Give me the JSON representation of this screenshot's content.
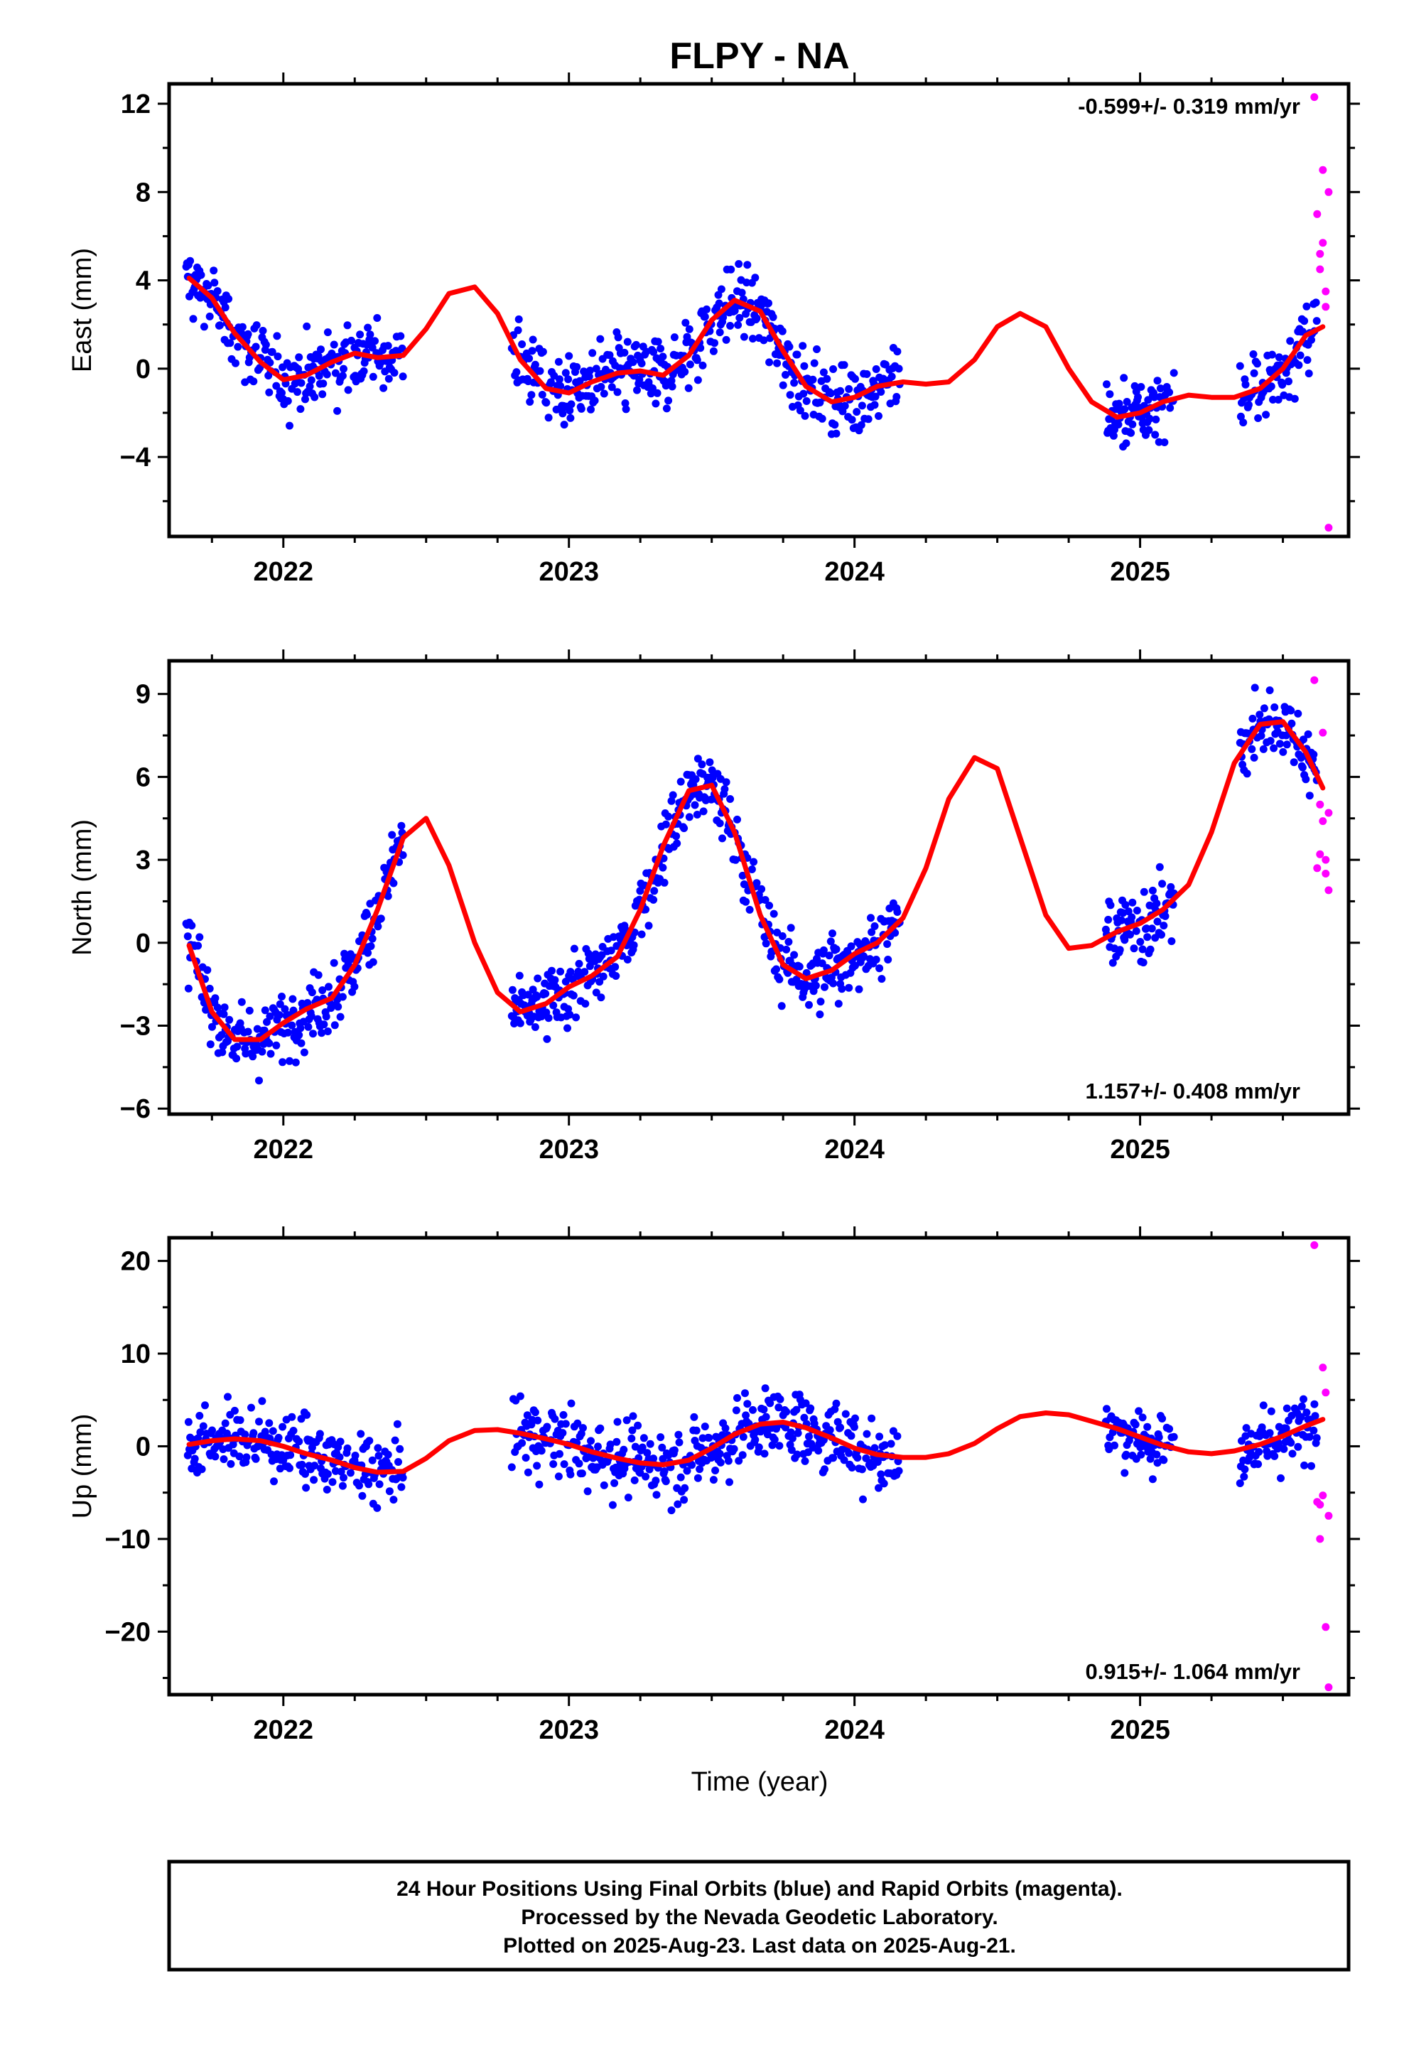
{
  "chart_data": {
    "type": "scatter",
    "title": "FLPY - NA",
    "xlabel": "Time (year)",
    "x_ticks": [
      "2022",
      "2023",
      "2024",
      "2025"
    ],
    "xlim": [
      2021.6,
      2025.73
    ],
    "colors": {
      "final": "#0000ff",
      "rapid": "#ff00ff",
      "model": "#ff0000"
    },
    "grid": false,
    "legend": "none",
    "panels": [
      {
        "name": "east",
        "ylabel": "East (mm)",
        "ylim": [
          -7.6,
          12.9
        ],
        "y_ticks": [
          "12",
          "8",
          "4",
          "0",
          "−4"
        ],
        "y_tick_values": [
          12,
          8,
          4,
          0,
          -4
        ],
        "rate_text": "-0.599+/- 0.319 mm/yr",
        "rate_position": "top-right",
        "model_curve": {
          "x": [
            2021.67,
            2021.75,
            2021.83,
            2021.92,
            2022.0,
            2022.08,
            2022.17,
            2022.25,
            2022.33,
            2022.42,
            2022.5,
            2022.58,
            2022.67,
            2022.75,
            2022.83,
            2022.92,
            2023.0,
            2023.08,
            2023.17,
            2023.25,
            2023.33,
            2023.42,
            2023.5,
            2023.58,
            2023.67,
            2023.75,
            2023.83,
            2023.92,
            2024.0,
            2024.08,
            2024.17,
            2024.25,
            2024.33,
            2024.42,
            2024.5,
            2024.58,
            2024.67,
            2024.75,
            2024.83,
            2024.92,
            2025.0,
            2025.08,
            2025.17,
            2025.25,
            2025.33,
            2025.42,
            2025.5,
            2025.58,
            2025.64
          ],
          "y": [
            4.1,
            3.2,
            1.6,
            0.3,
            -0.5,
            -0.3,
            0.3,
            0.7,
            0.5,
            0.6,
            1.8,
            3.4,
            3.7,
            2.5,
            0.4,
            -0.9,
            -1.1,
            -0.6,
            -0.2,
            -0.1,
            -0.3,
            0.6,
            2.2,
            3.1,
            2.6,
            0.8,
            -0.8,
            -1.5,
            -1.3,
            -0.8,
            -0.6,
            -0.7,
            -0.6,
            0.4,
            1.9,
            2.5,
            1.9,
            0.0,
            -1.5,
            -2.2,
            -2.0,
            -1.5,
            -1.2,
            -1.3,
            -1.3,
            -0.9,
            0.0,
            1.5,
            1.9
          ]
        },
        "final_blocks": [
          [
            2021.66,
            2022.42
          ],
          [
            2022.8,
            2023.75
          ],
          [
            2023.75,
            2024.16
          ],
          [
            2024.88,
            2025.12
          ],
          [
            2025.35,
            2025.62
          ]
        ],
        "rapid_points": {
          "x": [
            2025.61,
            2025.62,
            2025.63,
            2025.63,
            2025.64,
            2025.64,
            2025.65,
            2025.65,
            2025.66,
            2025.66
          ],
          "y": [
            12.3,
            7.0,
            5.2,
            4.5,
            9.0,
            5.7,
            3.5,
            2.8,
            8.0,
            -7.2
          ]
        }
      },
      {
        "name": "north",
        "ylabel": "North (mm)",
        "ylim": [
          -6.2,
          10.2
        ],
        "y_ticks": [
          "9",
          "6",
          "3",
          "0",
          "−3",
          "−6"
        ],
        "y_tick_values": [
          9,
          6,
          3,
          0,
          -3,
          -6
        ],
        "rate_text": "1.157+/- 0.408 mm/yr",
        "rate_position": "bottom-right",
        "model_curve": {
          "x": [
            2021.67,
            2021.75,
            2021.83,
            2021.92,
            2022.0,
            2022.08,
            2022.17,
            2022.25,
            2022.33,
            2022.42,
            2022.5,
            2022.58,
            2022.67,
            2022.75,
            2022.83,
            2022.92,
            2023.0,
            2023.08,
            2023.17,
            2023.25,
            2023.33,
            2023.42,
            2023.5,
            2023.58,
            2023.67,
            2023.75,
            2023.83,
            2023.92,
            2024.0,
            2024.08,
            2024.17,
            2024.25,
            2024.33,
            2024.42,
            2024.5,
            2024.58,
            2024.67,
            2024.75,
            2024.83,
            2024.92,
            2025.0,
            2025.08,
            2025.17,
            2025.25,
            2025.33,
            2025.42,
            2025.5,
            2025.58,
            2025.64
          ],
          "y": [
            -0.1,
            -2.5,
            -3.5,
            -3.5,
            -2.9,
            -2.4,
            -2.0,
            -0.8,
            1.2,
            3.8,
            4.5,
            2.8,
            0.0,
            -1.8,
            -2.5,
            -2.2,
            -1.6,
            -1.2,
            -0.5,
            1.2,
            3.5,
            5.5,
            5.7,
            4.0,
            1.0,
            -0.8,
            -1.3,
            -1.0,
            -0.4,
            0.0,
            0.9,
            2.7,
            5.2,
            6.7,
            6.3,
            3.8,
            1.0,
            -0.2,
            -0.1,
            0.4,
            0.7,
            1.2,
            2.1,
            4.0,
            6.5,
            7.9,
            8.0,
            6.9,
            5.6
          ]
        },
        "final_blocks": [
          [
            2021.66,
            2022.42
          ],
          [
            2022.8,
            2023.75
          ],
          [
            2023.75,
            2024.16
          ],
          [
            2024.88,
            2025.12
          ],
          [
            2025.35,
            2025.62
          ]
        ],
        "rapid_points": {
          "x": [
            2025.61,
            2025.62,
            2025.63,
            2025.63,
            2025.64,
            2025.64,
            2025.65,
            2025.65,
            2025.66,
            2025.66
          ],
          "y": [
            9.5,
            2.7,
            3.2,
            5.0,
            7.6,
            4.4,
            3.0,
            2.5,
            4.7,
            1.9
          ]
        }
      },
      {
        "name": "up",
        "ylabel": "Up (mm)",
        "ylim": [
          -26.8,
          22.5
        ],
        "y_ticks": [
          "20",
          "10",
          "0",
          "−10",
          "−20"
        ],
        "y_tick_values": [
          20,
          10,
          0,
          -10,
          -20
        ],
        "rate_text": "0.915+/- 1.064 mm/yr",
        "rate_position": "bottom-right",
        "model_curve": {
          "x": [
            2021.67,
            2021.75,
            2021.83,
            2021.92,
            2022.0,
            2022.08,
            2022.17,
            2022.25,
            2022.33,
            2022.42,
            2022.5,
            2022.58,
            2022.67,
            2022.75,
            2022.83,
            2022.92,
            2023.0,
            2023.08,
            2023.17,
            2023.25,
            2023.33,
            2023.42,
            2023.5,
            2023.58,
            2023.67,
            2023.75,
            2023.83,
            2023.92,
            2024.0,
            2024.08,
            2024.17,
            2024.25,
            2024.33,
            2024.42,
            2024.5,
            2024.58,
            2024.67,
            2024.75,
            2024.83,
            2024.92,
            2025.0,
            2025.08,
            2025.17,
            2025.25,
            2025.33,
            2025.42,
            2025.5,
            2025.58,
            2025.64
          ],
          "y": [
            0.2,
            0.6,
            0.8,
            0.6,
            0.0,
            -0.8,
            -1.5,
            -2.3,
            -2.8,
            -2.7,
            -1.3,
            0.6,
            1.7,
            1.8,
            1.4,
            0.8,
            0.2,
            -0.6,
            -1.3,
            -1.8,
            -2.0,
            -1.5,
            -0.2,
            1.3,
            2.4,
            2.6,
            2.0,
            0.9,
            -0.2,
            -0.9,
            -1.2,
            -1.2,
            -0.8,
            0.3,
            1.9,
            3.2,
            3.6,
            3.4,
            2.7,
            1.9,
            1.0,
            0.1,
            -0.6,
            -0.8,
            -0.5,
            0.2,
            1.1,
            2.2,
            2.9
          ]
        },
        "final_blocks": [
          [
            2021.66,
            2022.42
          ],
          [
            2022.8,
            2023.75
          ],
          [
            2023.75,
            2024.16
          ],
          [
            2024.88,
            2025.12
          ],
          [
            2025.35,
            2025.62
          ]
        ],
        "rapid_points": {
          "x": [
            2025.61,
            2025.62,
            2025.63,
            2025.63,
            2025.64,
            2025.64,
            2025.65,
            2025.65,
            2025.66,
            2025.66
          ],
          "y": [
            21.7,
            -6.0,
            -10.0,
            -6.3,
            8.5,
            -5.3,
            5.8,
            -19.5,
            -26.0,
            -7.5
          ]
        }
      }
    ]
  },
  "footer": {
    "line1": "24 Hour Positions Using Final Orbits (blue) and Rapid Orbits (magenta).",
    "line2": "Processed by the Nevada Geodetic Laboratory.",
    "line3": "Plotted on 2025-Aug-23. Last data on 2025-Aug-21."
  }
}
